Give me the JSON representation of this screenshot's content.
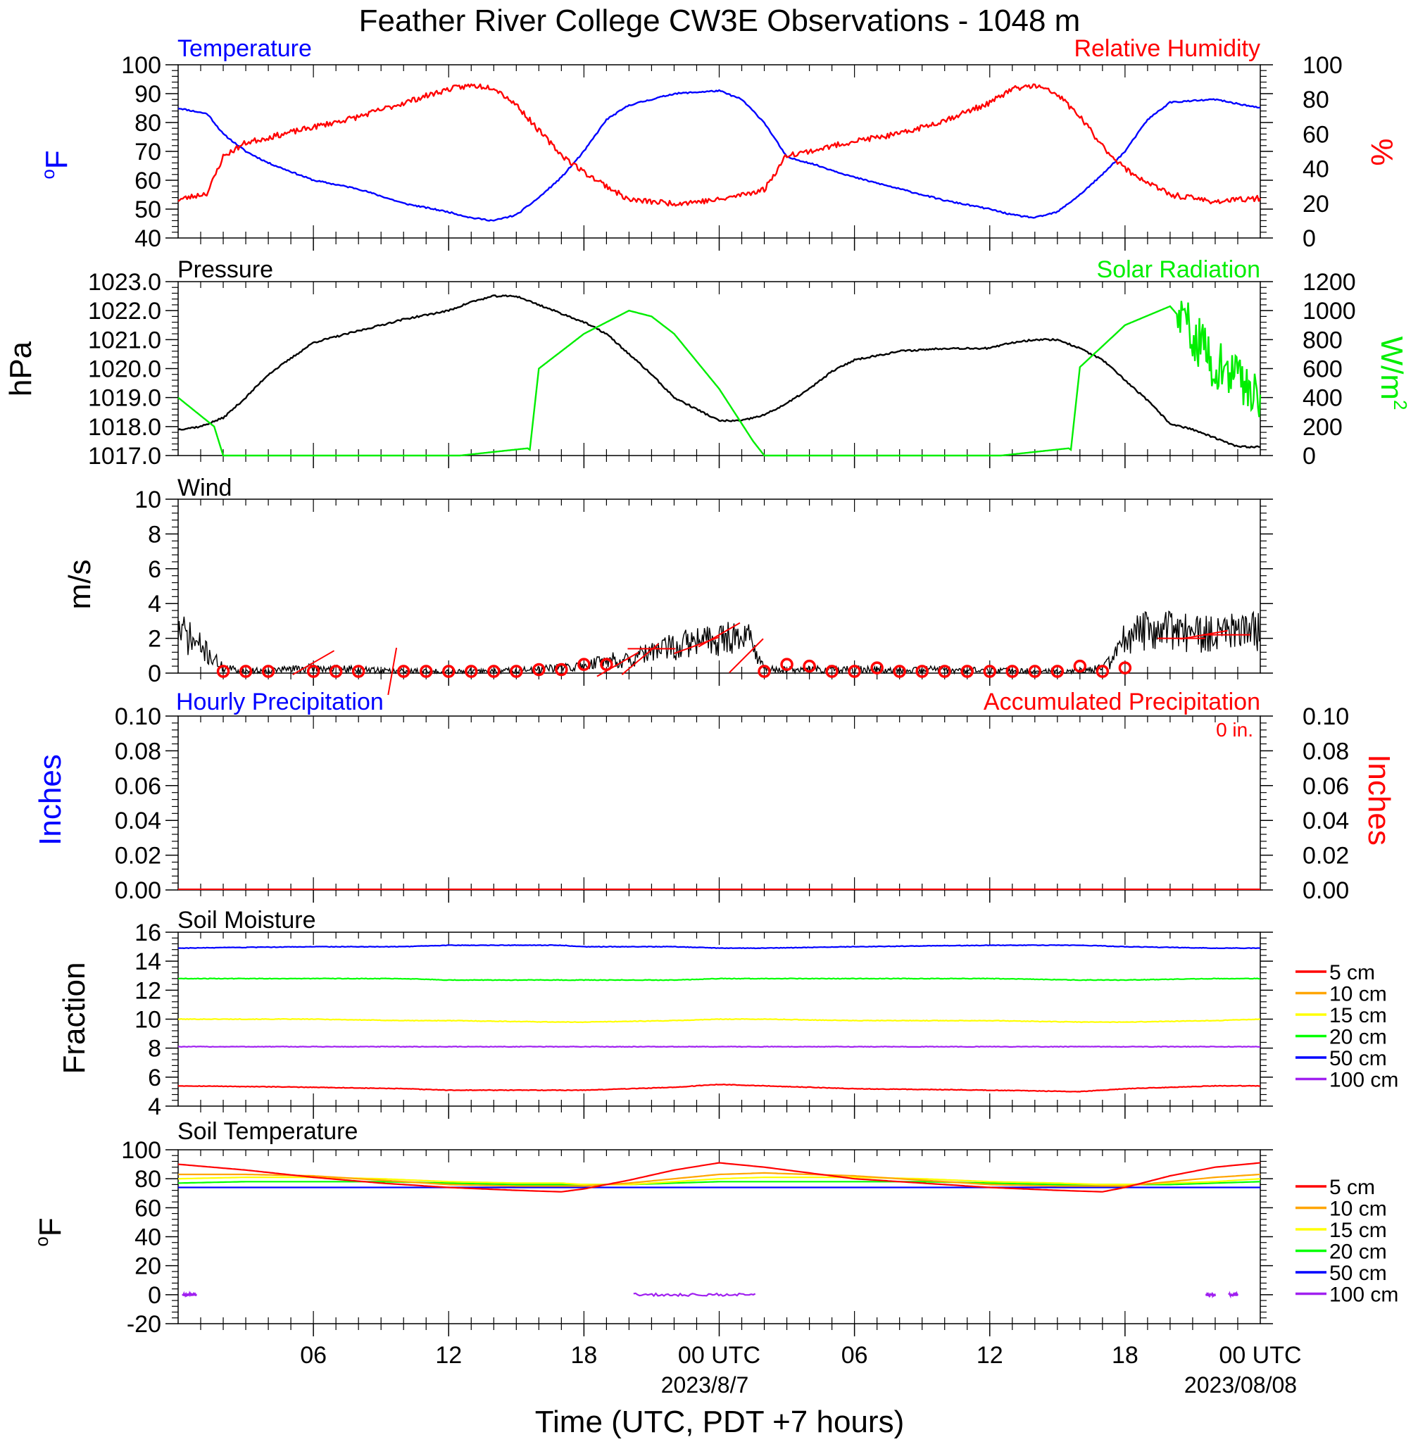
{
  "title": "Feather River College CW3E Observations - 1048 m",
  "x_axis": {
    "tick_labels": [
      "06",
      "12",
      "18",
      "00 UTC",
      "06",
      "12",
      "18",
      "00 UTC"
    ],
    "date_labels": [
      "2023/8/7",
      "2023/08/08"
    ],
    "xlabel": "Time (UTC, PDT +7 hours)"
  },
  "colors": {
    "temperature": "#0000ff",
    "humidity": "#ff0000",
    "pressure": "#000000",
    "solar": "#00ee00",
    "depth_5cm": "#ff0000",
    "depth_10cm": "#ffa500",
    "depth_15cm": "#ffff00",
    "depth_20cm": "#00ff00",
    "depth_50cm": "#0000ff",
    "depth_100cm": "#a020f0"
  },
  "panels": {
    "temp_rh": {
      "left_title": "Temperature",
      "right_title": "Relative Humidity",
      "left_unit_sup": "o",
      "left_unit": "F",
      "right_unit": "%",
      "left_ticks": [
        "100",
        "90",
        "80",
        "70",
        "60",
        "50",
        "40"
      ],
      "right_ticks": [
        "100",
        "80",
        "60",
        "40",
        "20",
        "0"
      ]
    },
    "pressure_solar": {
      "left_title": "Pressure",
      "right_title": "Solar Radiation",
      "left_unit": "hPa",
      "right_unit": "W/m",
      "right_unit_sup": "2",
      "left_ticks": [
        "1023.0",
        "1022.0",
        "1021.0",
        "1020.0",
        "1019.0",
        "1018.0",
        "1017.0"
      ],
      "right_ticks": [
        "1200",
        "1000",
        "800",
        "600",
        "400",
        "200",
        "0"
      ]
    },
    "wind": {
      "left_title": "Wind",
      "left_unit": "m/s",
      "left_ticks": [
        "10",
        "8",
        "6",
        "4",
        "2",
        "0"
      ]
    },
    "precip": {
      "left_title": "Hourly Precipitation",
      "right_title": "Accumulated Precipitation",
      "accum_text": "0 in.",
      "left_unit": "Inches",
      "right_unit": "Inches",
      "left_ticks": [
        "0.10",
        "0.08",
        "0.06",
        "0.04",
        "0.02",
        "0.00"
      ],
      "right_ticks": [
        "0.10",
        "0.08",
        "0.06",
        "0.04",
        "0.02",
        "0.00"
      ]
    },
    "soil_moisture": {
      "left_title": "Soil Moisture",
      "left_unit": "Fraction",
      "left_ticks": [
        "16",
        "14",
        "12",
        "10",
        "8",
        "6",
        "4"
      ],
      "legend": [
        "5 cm",
        "10 cm",
        "15 cm",
        "20 cm",
        "50 cm",
        "100 cm"
      ]
    },
    "soil_temp": {
      "left_title": "Soil Temperature",
      "left_unit_sup": "o",
      "left_unit": "F",
      "left_ticks": [
        "100",
        "80",
        "60",
        "40",
        "20",
        "0",
        "-20"
      ],
      "legend": [
        "5 cm",
        "10 cm",
        "15 cm",
        "20 cm",
        "50 cm",
        "100 cm"
      ]
    }
  },
  "chart_data": {
    "type": "line",
    "time_range_hours": [
      0,
      48
    ],
    "x_tick_hours": [
      6,
      12,
      18,
      24,
      30,
      36,
      42,
      48
    ],
    "charts": {
      "temperature_F": {
        "ylim": [
          40,
          100
        ],
        "x": [
          0,
          1.3,
          2,
          3,
          4,
          6,
          8,
          10,
          12,
          13,
          14,
          15,
          16,
          17,
          18,
          19,
          20,
          22,
          24,
          25,
          26,
          27,
          28,
          30,
          32,
          34,
          36,
          37,
          38,
          39,
          40,
          41,
          42,
          43,
          44,
          46,
          48
        ],
        "y": [
          85,
          83,
          76,
          70,
          66,
          60,
          57,
          52,
          49,
          47,
          46,
          48,
          54,
          61,
          70,
          81,
          86,
          90,
          91,
          88,
          80,
          68,
          66,
          61,
          57,
          53,
          50,
          48,
          47,
          49,
          55,
          62,
          70,
          81,
          87,
          88,
          85
        ]
      },
      "relative_humidity_pct": {
        "ylim": [
          0,
          100
        ],
        "x": [
          0,
          1.3,
          2,
          3,
          4,
          6,
          8,
          10,
          12,
          13,
          14,
          15,
          16,
          17,
          18,
          19,
          20,
          22,
          24,
          25,
          26,
          27,
          28,
          30,
          32,
          34,
          36,
          37,
          38,
          39,
          40,
          41,
          42,
          43,
          44,
          46,
          48
        ],
        "y": [
          22,
          26,
          47,
          55,
          58,
          64,
          70,
          78,
          86,
          88,
          87,
          77,
          62,
          48,
          38,
          30,
          22,
          20,
          22,
          25,
          28,
          48,
          50,
          56,
          60,
          68,
          78,
          86,
          88,
          83,
          70,
          53,
          40,
          32,
          25,
          21,
          23
        ]
      },
      "pressure_hPa": {
        "ylim": [
          1017,
          1023
        ],
        "x": [
          0,
          1,
          2,
          3,
          4,
          6,
          8,
          10,
          12,
          13,
          14,
          15,
          16,
          17,
          18,
          19,
          20,
          21,
          22,
          24,
          25,
          26,
          27,
          28,
          29,
          30,
          32,
          34,
          36,
          37,
          38,
          39,
          40,
          41,
          42,
          43,
          44,
          45,
          46,
          47,
          48
        ],
        "y": [
          1017.9,
          1018.0,
          1018.3,
          1019.0,
          1019.8,
          1020.9,
          1021.3,
          1021.7,
          1022.0,
          1022.3,
          1022.5,
          1022.5,
          1022.2,
          1021.9,
          1021.6,
          1021.2,
          1020.5,
          1019.8,
          1019.0,
          1018.2,
          1018.2,
          1018.4,
          1018.8,
          1019.3,
          1019.9,
          1020.3,
          1020.6,
          1020.7,
          1020.7,
          1020.9,
          1021.0,
          1021.0,
          1020.7,
          1020.3,
          1019.6,
          1018.9,
          1018.1,
          1017.9,
          1017.6,
          1017.3,
          1017.3
        ]
      },
      "solar_radiation_Wm2": {
        "ylim": [
          0,
          1200
        ],
        "x": [
          0,
          1.6,
          2,
          12.5,
          15.5,
          15.6,
          16,
          18,
          20,
          21,
          22,
          24,
          25.5,
          26,
          36.5,
          39.5,
          39.6,
          40,
          42,
          44,
          45,
          46,
          47,
          48
        ],
        "y": [
          400,
          200,
          0,
          0,
          50,
          40,
          600,
          840,
          1000,
          960,
          840,
          460,
          100,
          0,
          0,
          50,
          40,
          610,
          900,
          1030,
          850,
          620,
          540,
          400
        ]
      },
      "wind_speed_ms": {
        "ylim": [
          0,
          10
        ],
        "x": [
          0,
          1,
          2,
          3,
          6,
          10,
          14,
          16,
          17,
          18,
          19,
          20,
          21,
          22,
          23,
          24,
          25,
          25.5,
          26,
          27,
          30,
          34,
          38,
          40,
          41,
          41.5,
          42,
          43,
          44,
          46,
          48
        ],
        "y": [
          2.5,
          1.5,
          0.3,
          0.1,
          0.3,
          0.1,
          0.1,
          0.2,
          0.3,
          0.4,
          0.8,
          0.7,
          1.2,
          1.5,
          1.8,
          2.0,
          2.2,
          1.8,
          0.2,
          0.2,
          0.2,
          0.2,
          0.1,
          0.1,
          0.3,
          0.8,
          2.0,
          2.5,
          2.4,
          2.2,
          2.4
        ]
      },
      "wind_hourly_markers": {
        "x": [
          2,
          3,
          4,
          6,
          7,
          8,
          10,
          11,
          12,
          13,
          14,
          15,
          16,
          17,
          18,
          19,
          26,
          27,
          28,
          29,
          30,
          31,
          32,
          33,
          34,
          35,
          36,
          37,
          38,
          39,
          40,
          41,
          42
        ],
        "y": [
          0.1,
          0.1,
          0.1,
          0.1,
          0.1,
          0.1,
          0.1,
          0.1,
          0.1,
          0.1,
          0.1,
          0.1,
          0.2,
          0.2,
          0.5,
          0.5,
          0.1,
          0.5,
          0.4,
          0.1,
          0.1,
          0.3,
          0.1,
          0.1,
          0.1,
          0.1,
          0.1,
          0.1,
          0.1,
          0.1,
          0.4,
          0.1,
          0.3
        ]
      },
      "hourly_precipitation_in": {
        "ylim": [
          0,
          0.1
        ],
        "x": [
          0,
          48
        ],
        "y": [
          0,
          0
        ]
      },
      "accumulated_precipitation_in": {
        "ylim": [
          0,
          0.1
        ],
        "x": [
          0,
          48
        ],
        "y": [
          0,
          0
        ]
      },
      "soil_moisture_fraction": {
        "ylim": [
          4,
          16
        ],
        "x": [
          0,
          6,
          10,
          12,
          17,
          18,
          22,
          24,
          26,
          30,
          36,
          40,
          42,
          46,
          48
        ],
        "series": [
          {
            "name": "5 cm",
            "y": [
              5.4,
              5.3,
              5.2,
              5.1,
              5.1,
              5.1,
              5.3,
              5.5,
              5.4,
              5.2,
              5.1,
              5.0,
              5.2,
              5.4,
              5.4
            ]
          },
          {
            "name": "15 cm",
            "y": [
              10.0,
              10.0,
              9.9,
              9.9,
              9.8,
              9.8,
              9.9,
              10.0,
              10.0,
              9.9,
              9.9,
              9.8,
              9.8,
              9.9,
              10.0
            ]
          },
          {
            "name": "20 cm",
            "y": [
              12.8,
              12.8,
              12.8,
              12.7,
              12.7,
              12.7,
              12.7,
              12.8,
              12.8,
              12.8,
              12.8,
              12.7,
              12.7,
              12.8,
              12.8
            ]
          },
          {
            "name": "50 cm",
            "y": [
              14.9,
              15.0,
              15.0,
              15.1,
              15.1,
              15.0,
              15.0,
              14.9,
              14.9,
              15.0,
              15.1,
              15.1,
              15.0,
              14.9,
              14.9
            ]
          },
          {
            "name": "100 cm",
            "y": [
              8.1,
              8.1,
              8.1,
              8.1,
              8.1,
              8.1,
              8.1,
              8.1,
              8.1,
              8.1,
              8.1,
              8.1,
              8.1,
              8.1,
              8.1
            ]
          }
        ]
      },
      "soil_temperature_F": {
        "ylim": [
          -20,
          100
        ],
        "x": [
          0,
          3,
          6,
          9,
          12,
          15,
          17,
          18,
          20,
          22,
          24,
          26,
          28,
          30,
          33,
          36,
          39,
          41,
          42,
          44,
          46,
          48
        ],
        "series": [
          {
            "name": "5 cm",
            "y": [
              90,
              86,
              81,
              77,
              74,
              72,
              71,
              73,
              79,
              86,
              91,
              88,
              84,
              80,
              77,
              74,
              72,
              71,
              74,
              82,
              88,
              91
            ]
          },
          {
            "name": "10 cm",
            "y": [
              83,
              83,
              82,
              79,
              76,
              75,
              75,
              75,
              77,
              80,
              83,
              84,
              83,
              82,
              79,
              76,
              75,
              75,
              75,
              78,
              81,
              83
            ]
          },
          {
            "name": "15 cm",
            "y": [
              80,
              81,
              81,
              80,
              78,
              77,
              77,
              76,
              76,
              78,
              80,
              81,
              81,
              81,
              80,
              78,
              77,
              76,
              76,
              77,
              78,
              80
            ]
          },
          {
            "name": "20 cm",
            "y": [
              77,
              78,
              78,
              78,
              77,
              76,
              76,
              76,
              76,
              77,
              78,
              78,
              78,
              78,
              78,
              77,
              76,
              76,
              76,
              76,
              77,
              78
            ]
          },
          {
            "name": "50 cm",
            "y": [
              74,
              74,
              74,
              74,
              74,
              74,
              74,
              74,
              74,
              74,
              74,
              74,
              74,
              74,
              74,
              74,
              74,
              74,
              74,
              74,
              74,
              74
            ]
          }
        ],
        "segments_100cm": [
          {
            "x": [
              0.2,
              0.8
            ],
            "y": [
              0,
              0
            ]
          },
          {
            "x": [
              20.2,
              25.6
            ],
            "y": [
              0,
              0
            ]
          },
          {
            "x": [
              45.6,
              46.0
            ],
            "y": [
              0,
              0
            ]
          },
          {
            "x": [
              46.6,
              47.0
            ],
            "y": [
              0,
              0
            ]
          }
        ]
      }
    }
  }
}
